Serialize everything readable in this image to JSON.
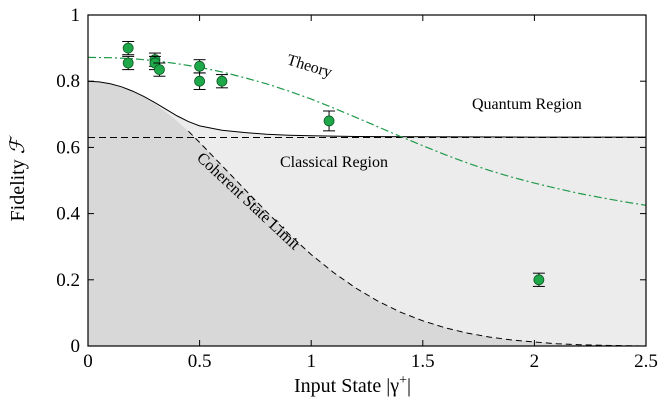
{
  "chart_data": {
    "type": "scatter",
    "xlabel": "Input State  |γ",
    "xlabel_sup": "+",
    "xlabel_end": "|",
    "ylabel": "Fidelity ",
    "ylabel_symbol": "ℱ",
    "xlim": [
      0,
      2.5
    ],
    "ylim": [
      0,
      1
    ],
    "xticks": [
      "0",
      "0.5",
      "1",
      "1.5",
      "2",
      "2.5"
    ],
    "yticks": [
      "0",
      "0.2",
      "0.4",
      "0.6",
      "0.8",
      "1"
    ],
    "annotations": {
      "theory": "Theory",
      "quantum": "Quantum Region",
      "classical": "Classical Region",
      "coherent": "Coherent State Limit"
    },
    "colors": {
      "points": "#1fa84a",
      "theory_line": "#1f9a4a",
      "coherent_fill": "#d8d8d8",
      "classical_fill": "#ececec"
    },
    "classical_limit": 0.63,
    "points": [
      {
        "x": 0.18,
        "y": 0.9,
        "err": 0.02
      },
      {
        "x": 0.18,
        "y": 0.855,
        "err": 0.02
      },
      {
        "x": 0.3,
        "y": 0.865,
        "err": 0.02
      },
      {
        "x": 0.3,
        "y": 0.855,
        "err": 0.02
      },
      {
        "x": 0.32,
        "y": 0.835,
        "err": 0.02
      },
      {
        "x": 0.5,
        "y": 0.845,
        "err": 0.02
      },
      {
        "x": 0.5,
        "y": 0.8,
        "err": 0.025
      },
      {
        "x": 0.6,
        "y": 0.8,
        "err": 0.02
      },
      {
        "x": 1.08,
        "y": 0.68,
        "err": 0.03
      },
      {
        "x": 2.02,
        "y": 0.2,
        "err": 0.02
      }
    ],
    "theory_curve": [
      [
        0,
        0.872
      ],
      [
        0.1,
        0.871
      ],
      [
        0.2,
        0.868
      ],
      [
        0.3,
        0.862
      ],
      [
        0.4,
        0.853
      ],
      [
        0.5,
        0.842
      ],
      [
        0.6,
        0.828
      ],
      [
        0.7,
        0.811
      ],
      [
        0.8,
        0.792
      ],
      [
        0.9,
        0.77
      ],
      [
        1.0,
        0.746
      ],
      [
        1.1,
        0.719
      ],
      [
        1.2,
        0.691
      ],
      [
        1.3,
        0.662
      ],
      [
        1.4,
        0.633
      ],
      [
        1.5,
        0.605
      ],
      [
        1.6,
        0.578
      ],
      [
        1.7,
        0.553
      ],
      [
        1.8,
        0.53
      ],
      [
        1.9,
        0.51
      ],
      [
        2.0,
        0.492
      ],
      [
        2.1,
        0.476
      ],
      [
        2.2,
        0.461
      ],
      [
        2.3,
        0.448
      ],
      [
        2.4,
        0.436
      ],
      [
        2.5,
        0.425
      ]
    ],
    "coherent_curve": [
      [
        0,
        0.8
      ],
      [
        0.05,
        0.798
      ],
      [
        0.1,
        0.792
      ],
      [
        0.15,
        0.783
      ],
      [
        0.2,
        0.77
      ],
      [
        0.25,
        0.752
      ],
      [
        0.3,
        0.731
      ],
      [
        0.35,
        0.706
      ],
      [
        0.4,
        0.679
      ],
      [
        0.45,
        0.649
      ],
      [
        0.5,
        0.615
      ],
      [
        0.6,
        0.545
      ],
      [
        0.7,
        0.475
      ],
      [
        0.8,
        0.405
      ],
      [
        0.9,
        0.338
      ],
      [
        1.0,
        0.276
      ],
      [
        1.1,
        0.222
      ],
      [
        1.2,
        0.175
      ],
      [
        1.3,
        0.135
      ],
      [
        1.4,
        0.102
      ],
      [
        1.5,
        0.076
      ],
      [
        1.6,
        0.055
      ],
      [
        1.7,
        0.039
      ],
      [
        1.8,
        0.027
      ],
      [
        1.9,
        0.018
      ],
      [
        2.0,
        0.012
      ],
      [
        2.1,
        0.007
      ],
      [
        2.2,
        0.004
      ],
      [
        2.3,
        0.002
      ],
      [
        2.4,
        0.001
      ],
      [
        2.5,
        0.0
      ]
    ],
    "boundary_curve": [
      [
        0,
        0.8
      ],
      [
        0.05,
        0.798
      ],
      [
        0.1,
        0.792
      ],
      [
        0.15,
        0.783
      ],
      [
        0.2,
        0.77
      ],
      [
        0.25,
        0.754
      ],
      [
        0.3,
        0.735
      ],
      [
        0.35,
        0.715
      ],
      [
        0.4,
        0.695
      ],
      [
        0.45,
        0.678
      ],
      [
        0.5,
        0.665
      ],
      [
        0.6,
        0.652
      ],
      [
        0.7,
        0.645
      ],
      [
        0.8,
        0.64
      ],
      [
        0.9,
        0.637
      ],
      [
        1.0,
        0.635
      ],
      [
        1.2,
        0.633
      ],
      [
        1.5,
        0.632
      ],
      [
        2.0,
        0.631
      ],
      [
        2.5,
        0.631
      ]
    ]
  }
}
